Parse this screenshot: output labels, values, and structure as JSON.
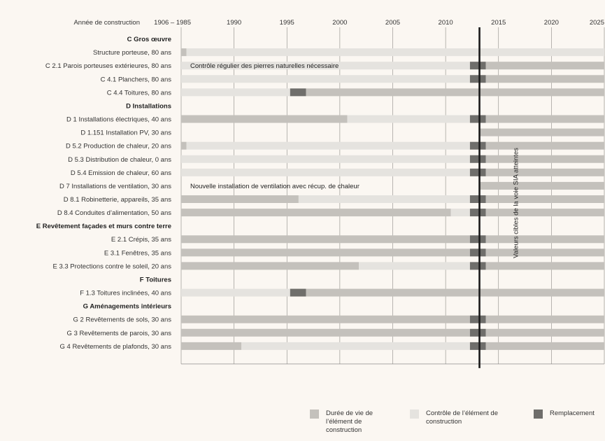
{
  "chart_data": {
    "type": "gantt",
    "x_axis_title": "Année de construction",
    "ticks": [
      {
        "label": "1906 – 1985",
        "x": 1985
      },
      {
        "label": "1990",
        "x": 1990
      },
      {
        "label": "1995",
        "x": 1995
      },
      {
        "label": "2000",
        "x": 2000
      },
      {
        "label": "2005",
        "x": 2005
      },
      {
        "label": "2010",
        "x": 2010
      },
      {
        "label": "2015",
        "x": 2015
      },
      {
        "label": "2020",
        "x": 2020
      },
      {
        "label": "2025",
        "x": 2025
      }
    ],
    "xlim": [
      1985,
      2025
    ],
    "current_year": 2013.2,
    "marker_label": "Valeurs cibles de la voie SIA atteintes",
    "colors": {
      "lifetime": "#c4c1bc",
      "control": "#e5e3df",
      "replacement": "#6f6e6b",
      "marker": "#1a1a1a"
    },
    "rows": [
      {
        "kind": "group",
        "label": "C Gros œuvre"
      },
      {
        "kind": "item",
        "label": "Structure porteuse, 80 ans",
        "segs": [
          {
            "t": "life",
            "a": 1985,
            "b": 1985.5
          },
          {
            "t": "control",
            "a": 1985.5,
            "b": 2025
          }
        ]
      },
      {
        "kind": "item",
        "label": "C 2.1 Parois porteuses extérieures, 80 ans",
        "segs": [
          {
            "t": "control",
            "a": 1985,
            "b": 2012.3
          },
          {
            "t": "replace",
            "a": 2012.3,
            "b": 2013.8
          },
          {
            "t": "life",
            "a": 2013.8,
            "b": 2025
          }
        ],
        "note": "Contrôle régulier des pierres naturelles nécessaire"
      },
      {
        "kind": "item",
        "label": "C 4.1 Planchers, 80 ans",
        "segs": [
          {
            "t": "control",
            "a": 1985,
            "b": 2012.3
          },
          {
            "t": "replace",
            "a": 2012.3,
            "b": 2013.8
          },
          {
            "t": "life",
            "a": 2013.8,
            "b": 2025
          }
        ]
      },
      {
        "kind": "item",
        "label": "C 4.4 Toitures, 80 ans",
        "segs": [
          {
            "t": "control",
            "a": 1985,
            "b": 1995.3
          },
          {
            "t": "replace",
            "a": 1995.3,
            "b": 1996.8
          },
          {
            "t": "life",
            "a": 1996.8,
            "b": 2025
          }
        ]
      },
      {
        "kind": "group",
        "label": "D Installations"
      },
      {
        "kind": "item",
        "label": "D 1 Installations électriques, 40 ans",
        "segs": [
          {
            "t": "life",
            "a": 1985,
            "b": 2000.7
          },
          {
            "t": "control",
            "a": 2000.7,
            "b": 2012.3
          },
          {
            "t": "replace",
            "a": 2012.3,
            "b": 2013.8
          },
          {
            "t": "life",
            "a": 2013.8,
            "b": 2025
          }
        ]
      },
      {
        "kind": "item",
        "label": "D 1.151 Installation PV, 30 ans",
        "segs": [
          {
            "t": "life",
            "a": 2013.2,
            "b": 2025
          }
        ]
      },
      {
        "kind": "item",
        "label": "D 5.2 Production de chaleur, 20 ans",
        "segs": [
          {
            "t": "life",
            "a": 1985,
            "b": 1985.5
          },
          {
            "t": "control",
            "a": 1985.5,
            "b": 2012.3
          },
          {
            "t": "replace",
            "a": 2012.3,
            "b": 2013.8
          },
          {
            "t": "life",
            "a": 2013.8,
            "b": 2025
          }
        ]
      },
      {
        "kind": "item",
        "label": "D 5.3 Distribution de chaleur, 0 ans",
        "segs": [
          {
            "t": "control",
            "a": 1985,
            "b": 2012.3
          },
          {
            "t": "replace",
            "a": 2012.3,
            "b": 2013.8
          },
          {
            "t": "life",
            "a": 2013.8,
            "b": 2025
          }
        ]
      },
      {
        "kind": "item",
        "label": "D 5.4 Emission de chaleur, 60 ans",
        "segs": [
          {
            "t": "control",
            "a": 1985,
            "b": 2012.3
          },
          {
            "t": "replace",
            "a": 2012.3,
            "b": 2013.8
          },
          {
            "t": "life",
            "a": 2013.8,
            "b": 2025
          }
        ]
      },
      {
        "kind": "item",
        "label": "D 7 Installations de ventilation, 30 ans",
        "segs": [
          {
            "t": "life",
            "a": 2013.2,
            "b": 2025
          }
        ],
        "note": "Nouvelle installation de ventilation avec récup. de chaleur"
      },
      {
        "kind": "item",
        "label": "D 8.1 Robinetterie, appareils, 35 ans",
        "segs": [
          {
            "t": "life",
            "a": 1985,
            "b": 1996.1
          },
          {
            "t": "control",
            "a": 1996.1,
            "b": 2012.3
          },
          {
            "t": "replace",
            "a": 2012.3,
            "b": 2013.8
          },
          {
            "t": "life",
            "a": 2013.8,
            "b": 2025
          }
        ]
      },
      {
        "kind": "item",
        "label": "D 8.4 Conduites d’alimentation, 50 ans",
        "segs": [
          {
            "t": "life",
            "a": 1985,
            "b": 2010.5
          },
          {
            "t": "control",
            "a": 2010.5,
            "b": 2012.3
          },
          {
            "t": "replace",
            "a": 2012.3,
            "b": 2013.8
          },
          {
            "t": "life",
            "a": 2013.8,
            "b": 2025
          }
        ]
      },
      {
        "kind": "group",
        "label": "E Revêtement façades et murs contre terre"
      },
      {
        "kind": "item",
        "label": "E 2.1 Crépis, 35 ans",
        "segs": [
          {
            "t": "life",
            "a": 1985,
            "b": 2012.3
          },
          {
            "t": "replace",
            "a": 2012.3,
            "b": 2013.8
          },
          {
            "t": "life",
            "a": 2013.8,
            "b": 2025
          }
        ]
      },
      {
        "kind": "item",
        "label": "E 3.1 Fenêtres, 35 ans",
        "segs": [
          {
            "t": "life",
            "a": 1985,
            "b": 2012.3
          },
          {
            "t": "replace",
            "a": 2012.3,
            "b": 2013.8
          },
          {
            "t": "life",
            "a": 2013.8,
            "b": 2025
          }
        ]
      },
      {
        "kind": "item",
        "label": "E 3.3 Protections contre le soleil, 20 ans",
        "segs": [
          {
            "t": "life",
            "a": 1985,
            "b": 2001.8
          },
          {
            "t": "control",
            "a": 2001.8,
            "b": 2012.3
          },
          {
            "t": "replace",
            "a": 2012.3,
            "b": 2013.8
          },
          {
            "t": "life",
            "a": 2013.8,
            "b": 2025
          }
        ]
      },
      {
        "kind": "group",
        "label": "F Toitures"
      },
      {
        "kind": "item",
        "label": "F 1.3 Toitures inclinées, 40 ans",
        "segs": [
          {
            "t": "control",
            "a": 1985,
            "b": 1995.3
          },
          {
            "t": "replace",
            "a": 1995.3,
            "b": 1996.8
          },
          {
            "t": "life",
            "a": 1996.8,
            "b": 2025
          }
        ]
      },
      {
        "kind": "group",
        "label": "G Aménagements intérieurs"
      },
      {
        "kind": "item",
        "label": "G 2 Revêtements de sols, 30 ans",
        "segs": [
          {
            "t": "life",
            "a": 1985,
            "b": 2012.3
          },
          {
            "t": "replace",
            "a": 2012.3,
            "b": 2013.8
          },
          {
            "t": "life",
            "a": 2013.8,
            "b": 2025
          }
        ]
      },
      {
        "kind": "item",
        "label": "G 3 Revêtements de parois, 30 ans",
        "segs": [
          {
            "t": "life",
            "a": 1985,
            "b": 2012.3
          },
          {
            "t": "replace",
            "a": 2012.3,
            "b": 2013.8
          },
          {
            "t": "life",
            "a": 2013.8,
            "b": 2025
          }
        ]
      },
      {
        "kind": "item",
        "label": "G 4 Revêtements de plafonds, 30 ans",
        "segs": [
          {
            "t": "life",
            "a": 1985,
            "b": 1990.7
          },
          {
            "t": "control",
            "a": 1990.7,
            "b": 2012.3
          },
          {
            "t": "replace",
            "a": 2012.3,
            "b": 2013.8
          },
          {
            "t": "life",
            "a": 2013.8,
            "b": 2025
          }
        ]
      }
    ],
    "legend": [
      {
        "key": "life",
        "label": "Durée de vie de\nl’élément de\nconstruction"
      },
      {
        "key": "control",
        "label": "Contrôle de l’élément de\nconstruction"
      },
      {
        "key": "replace",
        "label": "Remplacement"
      }
    ]
  }
}
